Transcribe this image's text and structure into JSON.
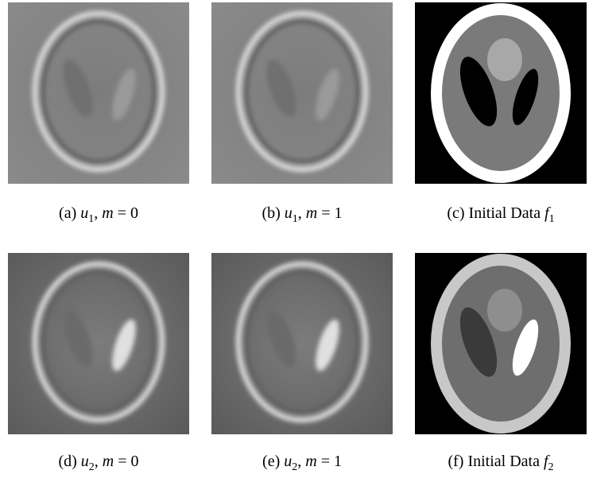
{
  "panels": [
    {
      "label": "(a)",
      "var": "u",
      "sub": "1",
      "param": "m",
      "value": "0"
    },
    {
      "label": "(b)",
      "var": "u",
      "sub": "1",
      "param": "m",
      "value": "1"
    },
    {
      "label": "(c)",
      "text": "Initial Data",
      "var": "f",
      "sub": "1"
    },
    {
      "label": "(d)",
      "var": "u",
      "sub": "2",
      "param": "m",
      "value": "0"
    },
    {
      "label": "(e)",
      "var": "u",
      "sub": "2",
      "param": "m",
      "value": "1"
    },
    {
      "label": "(f)",
      "text": "Initial Data",
      "var": "f",
      "sub": "2"
    }
  ]
}
